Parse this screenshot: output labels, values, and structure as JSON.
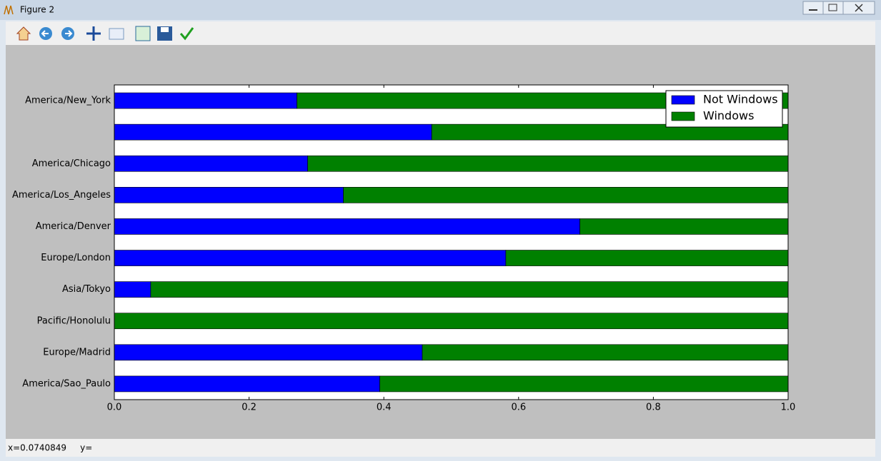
{
  "window": {
    "title": "Figure 2",
    "status": "x=0.0740849     y="
  },
  "chart_data": {
    "type": "barh_stacked",
    "categories": [
      "America/New_York",
      null,
      "America/Chicago",
      "America/Los_Angeles",
      "America/Denver",
      "Europe/London",
      "Asia/Tokyo",
      "Pacific/Honolulu",
      "Europe/Madrid",
      "America/Sao_Paulo"
    ],
    "series": [
      {
        "name": "Not Windows",
        "color": "#0000ff",
        "values": [
          0.271,
          0.471,
          0.287,
          0.34,
          0.691,
          0.581,
          0.054,
          0,
          0.457,
          0.394
        ]
      },
      {
        "name": "Windows",
        "color": "#008000",
        "values": [
          0.729,
          0.529,
          0.713,
          0.66,
          0.309,
          0.419,
          0.946,
          1,
          0.543,
          0.606
        ]
      }
    ],
    "xlim": [
      0,
      1
    ],
    "xticks": [
      {
        "value": 0,
        "label": "0.0"
      },
      0.2,
      0.4,
      0.6,
      0.8,
      {
        "value": 1,
        "label": "1.0"
      }
    ],
    "legend": "upper right"
  }
}
